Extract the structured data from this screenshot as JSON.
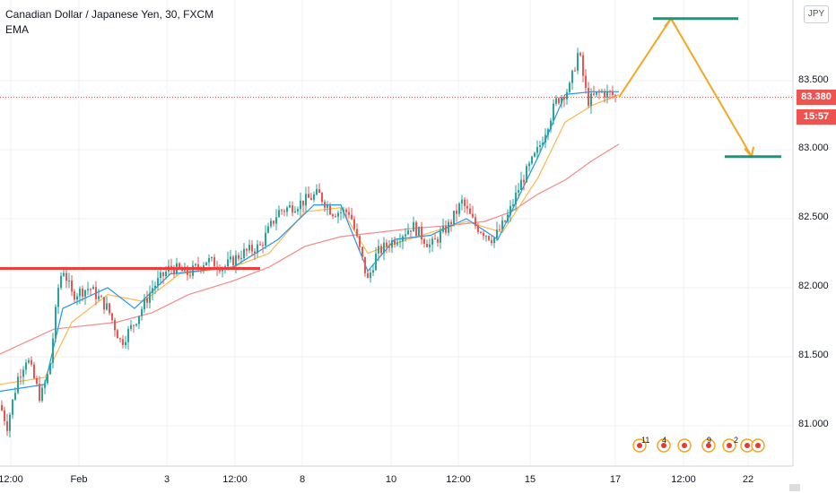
{
  "header": {
    "symbol_title": "Canadian Dollar / Japanese Yen, 30, FXCM",
    "indicator": "EMA",
    "currency": "JPY"
  },
  "price_axis": {
    "ticks": [
      "83.500",
      "83.000",
      "82.500",
      "82.000",
      "81.500",
      "81.000"
    ],
    "last_price": "83.380",
    "countdown": "15:57",
    "last_price_color": "#ef5350"
  },
  "time_axis": {
    "ticks": [
      {
        "label": "12:00",
        "x": 0
      },
      {
        "label": "Feb",
        "x": 1
      },
      {
        "label": "3",
        "x": 2
      },
      {
        "label": "12:00",
        "x": 3
      },
      {
        "label": "8",
        "x": 4
      },
      {
        "label": "10",
        "x": 5
      },
      {
        "label": "12:00",
        "x": 6
      },
      {
        "label": "15",
        "x": 7
      },
      {
        "label": "17",
        "x": 8
      },
      {
        "label": "12:00",
        "x": 9
      },
      {
        "label": "22",
        "x": 10
      }
    ]
  },
  "events": {
    "counts": [
      "11",
      "4",
      "9",
      "2"
    ]
  },
  "colors": {
    "up": "#26a69a",
    "down": "#ef5350",
    "ema_fast": "#2196f3",
    "ema_mid": "#ffb74d",
    "ema_slow": "#f48a8a",
    "support_line": "#f23b3b",
    "projection": "#f5a623",
    "target_line": "#16977e"
  },
  "chart_data": {
    "type": "candlestick",
    "price_range": [
      80.8,
      84.1
    ],
    "support_level": 82.14,
    "target_high": 83.95,
    "target_low": 82.95,
    "projection_path": [
      {
        "t": 690,
        "price": 83.38
      },
      {
        "t": 748,
        "price": 83.95
      },
      {
        "t": 838,
        "price": 82.95
      }
    ],
    "ema_slow": [
      [
        0,
        81.52
      ],
      [
        60,
        81.7
      ],
      [
        130,
        81.75
      ],
      [
        170,
        81.82
      ],
      [
        210,
        81.95
      ],
      [
        260,
        82.05
      ],
      [
        300,
        82.15
      ],
      [
        340,
        82.3
      ],
      [
        380,
        82.37
      ],
      [
        420,
        82.4
      ],
      [
        460,
        82.43
      ],
      [
        500,
        82.45
      ],
      [
        540,
        82.48
      ],
      [
        570,
        82.55
      ],
      [
        600,
        82.68
      ],
      [
        630,
        82.78
      ],
      [
        660,
        82.92
      ],
      [
        690,
        83.04
      ]
    ],
    "ema_mid": [
      [
        0,
        81.3
      ],
      [
        50,
        81.35
      ],
      [
        80,
        81.75
      ],
      [
        120,
        81.95
      ],
      [
        160,
        81.9
      ],
      [
        200,
        82.1
      ],
      [
        260,
        82.15
      ],
      [
        300,
        82.25
      ],
      [
        340,
        82.55
      ],
      [
        380,
        82.58
      ],
      [
        410,
        82.25
      ],
      [
        440,
        82.32
      ],
      [
        480,
        82.4
      ],
      [
        520,
        82.48
      ],
      [
        560,
        82.4
      ],
      [
        600,
        82.8
      ],
      [
        630,
        83.2
      ],
      [
        660,
        83.32
      ],
      [
        690,
        83.4
      ]
    ],
    "ema_fast": [
      [
        0,
        81.25
      ],
      [
        50,
        81.3
      ],
      [
        70,
        81.85
      ],
      [
        120,
        82.0
      ],
      [
        150,
        81.85
      ],
      [
        190,
        82.1
      ],
      [
        260,
        82.15
      ],
      [
        310,
        82.35
      ],
      [
        350,
        82.6
      ],
      [
        380,
        82.6
      ],
      [
        410,
        82.12
      ],
      [
        440,
        82.35
      ],
      [
        480,
        82.38
      ],
      [
        520,
        82.5
      ],
      [
        555,
        82.35
      ],
      [
        600,
        82.95
      ],
      [
        630,
        83.4
      ],
      [
        660,
        83.42
      ],
      [
        690,
        83.42
      ]
    ],
    "price_path": [
      [
        0,
        81.15
      ],
      [
        8,
        81.0
      ],
      [
        20,
        81.35
      ],
      [
        30,
        81.5
      ],
      [
        45,
        81.2
      ],
      [
        55,
        81.4
      ],
      [
        65,
        82.0
      ],
      [
        70,
        82.15
      ],
      [
        80,
        81.95
      ],
      [
        100,
        82.0
      ],
      [
        120,
        81.85
      ],
      [
        135,
        81.6
      ],
      [
        150,
        81.75
      ],
      [
        170,
        82.0
      ],
      [
        190,
        82.15
      ],
      [
        210,
        82.1
      ],
      [
        230,
        82.2
      ],
      [
        250,
        82.15
      ],
      [
        270,
        82.25
      ],
      [
        290,
        82.3
      ],
      [
        310,
        82.55
      ],
      [
        330,
        82.6
      ],
      [
        355,
        82.68
      ],
      [
        370,
        82.55
      ],
      [
        390,
        82.55
      ],
      [
        410,
        82.05
      ],
      [
        420,
        82.25
      ],
      [
        440,
        82.35
      ],
      [
        460,
        82.45
      ],
      [
        480,
        82.3
      ],
      [
        500,
        82.45
      ],
      [
        515,
        82.62
      ],
      [
        530,
        82.45
      ],
      [
        550,
        82.35
      ],
      [
        565,
        82.5
      ],
      [
        580,
        82.75
      ],
      [
        600,
        83.0
      ],
      [
        620,
        83.35
      ],
      [
        635,
        83.45
      ],
      [
        645,
        83.72
      ],
      [
        655,
        83.35
      ],
      [
        670,
        83.42
      ],
      [
        690,
        83.38
      ]
    ]
  }
}
